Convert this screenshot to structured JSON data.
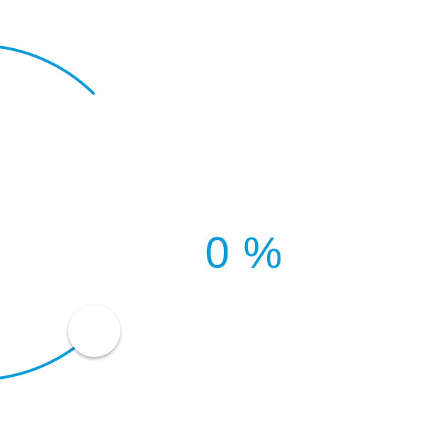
{
  "slider": {
    "value": 0,
    "unit": "%",
    "accent_color": "#0a9ddd",
    "knob_color": "#ffffff"
  }
}
